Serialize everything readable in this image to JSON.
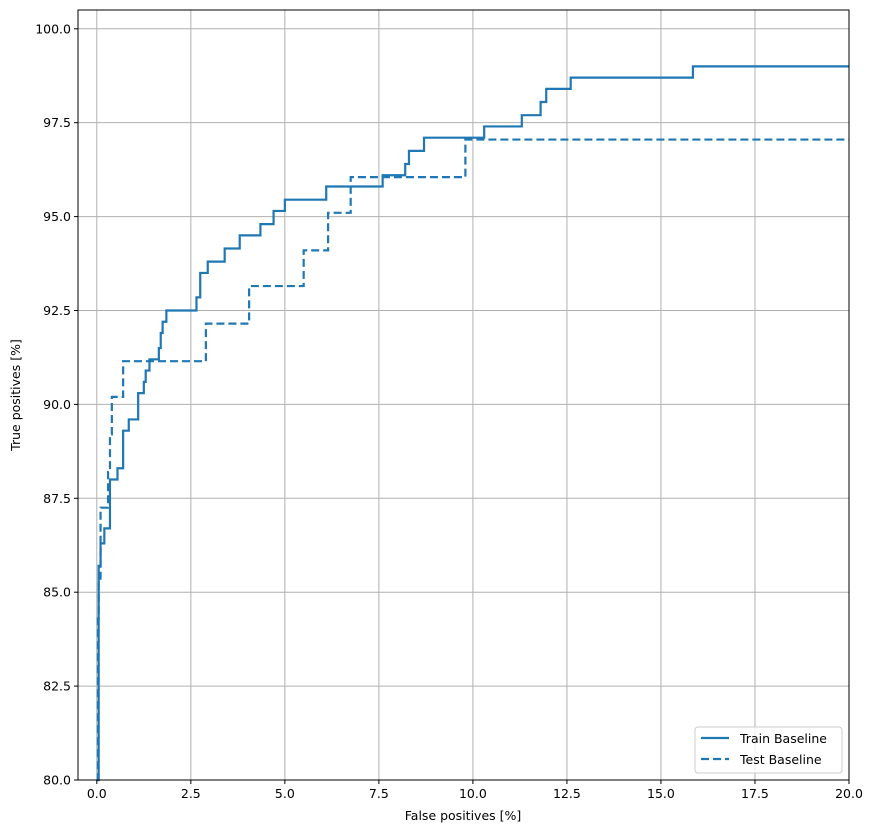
{
  "chart_data": {
    "type": "line",
    "title": "",
    "xlabel": "False positives [%]",
    "ylabel": "True positives [%]",
    "xlim": [
      -0.5,
      20.0
    ],
    "ylim": [
      80.0,
      100.5
    ],
    "xticks": [
      "0.0",
      "2.5",
      "5.0",
      "7.5",
      "10.0",
      "12.5",
      "15.0",
      "17.5",
      "20.0"
    ],
    "yticks": [
      "80.0",
      "82.5",
      "85.0",
      "87.5",
      "90.0",
      "92.5",
      "95.0",
      "97.5",
      "100.0"
    ],
    "grid": true,
    "legend_placement": "lower-right",
    "color": "#1f77b4",
    "series": [
      {
        "name": "Train Baseline",
        "style": "solid",
        "points": [
          [
            0.0,
            80.0
          ],
          [
            0.05,
            85.7
          ],
          [
            0.1,
            86.3
          ],
          [
            0.2,
            86.7
          ],
          [
            0.35,
            87.0
          ],
          [
            0.35,
            88.0
          ],
          [
            0.55,
            88.3
          ],
          [
            0.7,
            89.3
          ],
          [
            0.85,
            89.6
          ],
          [
            1.1,
            90.3
          ],
          [
            1.25,
            90.6
          ],
          [
            1.3,
            90.9
          ],
          [
            1.4,
            91.2
          ],
          [
            1.65,
            91.5
          ],
          [
            1.7,
            91.9
          ],
          [
            1.75,
            92.2
          ],
          [
            1.85,
            92.5
          ],
          [
            2.65,
            92.85
          ],
          [
            2.75,
            93.5
          ],
          [
            2.95,
            93.8
          ],
          [
            3.4,
            94.15
          ],
          [
            3.8,
            94.5
          ],
          [
            4.35,
            94.8
          ],
          [
            4.7,
            95.15
          ],
          [
            5.0,
            95.45
          ],
          [
            6.1,
            95.8
          ],
          [
            7.6,
            96.1
          ],
          [
            8.2,
            96.4
          ],
          [
            8.3,
            96.75
          ],
          [
            8.7,
            97.1
          ],
          [
            10.3,
            97.4
          ],
          [
            11.3,
            97.7
          ],
          [
            11.8,
            98.05
          ],
          [
            11.95,
            98.4
          ],
          [
            12.6,
            98.7
          ],
          [
            15.85,
            99.0
          ],
          [
            20.0,
            99.0
          ]
        ]
      },
      {
        "name": "Test Baseline",
        "style": "dashed",
        "points": [
          [
            0.0,
            80.0
          ],
          [
            0.03,
            84.3
          ],
          [
            0.05,
            85.3
          ],
          [
            0.1,
            86.3
          ],
          [
            0.1,
            87.25
          ],
          [
            0.3,
            88.2
          ],
          [
            0.35,
            89.2
          ],
          [
            0.4,
            90.2
          ],
          [
            0.7,
            91.15
          ],
          [
            2.9,
            92.15
          ],
          [
            4.05,
            93.15
          ],
          [
            5.5,
            94.1
          ],
          [
            6.15,
            95.1
          ],
          [
            6.75,
            96.05
          ],
          [
            9.8,
            97.05
          ],
          [
            20.0,
            97.05
          ]
        ]
      }
    ]
  }
}
